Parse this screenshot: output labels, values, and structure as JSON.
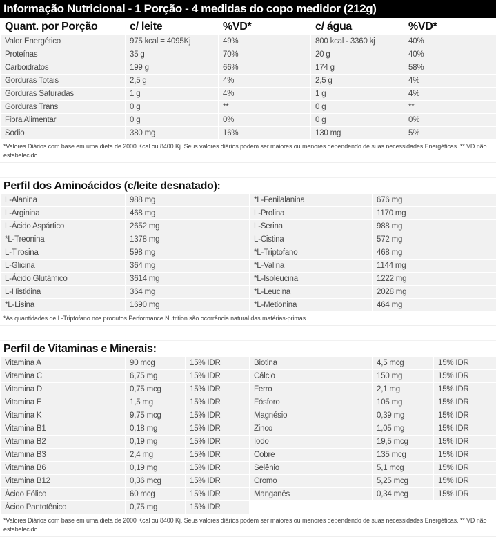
{
  "nutrition": {
    "title": "Informação Nutricional - 1 Porção - 4 medidas do copo medidor (212g)",
    "headers": [
      "Quant. por Porção",
      "c/ leite",
      "%VD*",
      "c/ água",
      "%VD*"
    ],
    "rows": [
      [
        "Valor Energético",
        "975 kcal = 4095Kj",
        "49%",
        "800 kcal - 3360 kj",
        "40%"
      ],
      [
        "Proteínas",
        "35 g",
        "70%",
        "20 g",
        "40%"
      ],
      [
        "Carboidratos",
        "199 g",
        "66%",
        "174 g",
        "58%"
      ],
      [
        "Gorduras Totais",
        "2,5 g",
        "4%",
        "2,5 g",
        "4%"
      ],
      [
        "Gorduras Saturadas",
        "1 g",
        "4%",
        "1 g",
        "4%"
      ],
      [
        "Gorduras Trans",
        "0 g",
        "**",
        "0 g",
        "**"
      ],
      [
        "Fibra Alimentar",
        "0 g",
        "0%",
        "0 g",
        "0%"
      ],
      [
        "Sodio",
        "380 mg",
        "16%",
        "130 mg",
        "5%"
      ]
    ],
    "footnote": "*Valores Diários com base em uma dieta de 2000 Kcal ou 8400 Kj. Seus valores diários podem ser maiores ou menores dependendo de suas necessidades Energéticas. ** VD não estabelecido."
  },
  "aminoacids": {
    "title": "Perfil dos Aminoácidos (c/leite desnatado):",
    "rows": [
      [
        "L-Alanina",
        "988 mg",
        "*L-Fenilalanina",
        "676 mg"
      ],
      [
        "L-Arginina",
        "468 mg",
        "L-Prolina",
        "1170 mg"
      ],
      [
        "L-Ácido Aspártico",
        "2652 mg",
        "L-Serina",
        "988 mg"
      ],
      [
        "*L-Treonina",
        "1378 mg",
        "L-Cistina",
        "572 mg"
      ],
      [
        "L-Tirosina",
        "598 mg",
        "*L-Triptofano",
        "468 mg"
      ],
      [
        "L-Glicina",
        "364 mg",
        "*L-Valina",
        "1144 mg"
      ],
      [
        "L-Ácido Glutâmico",
        "3614 mg",
        "*L-Isoleucina",
        "1222 mg"
      ],
      [
        "L-Histidina",
        "364 mg",
        "*L-Leucina",
        "2028 mg"
      ],
      [
        "*L-Lisina",
        "1690 mg",
        "*L-Metionina",
        "464 mg"
      ]
    ],
    "footnote": "*As quantidades de L-Triptofano nos produtos Performance Nutrition são ocorrência natural das matérias-primas."
  },
  "vitamins": {
    "title": "Perfil de Vitaminas e Minerais:",
    "rows": [
      [
        "Vitamina A",
        "90 mcg",
        "15% IDR",
        "Biotina",
        "4,5 mcg",
        "15% IDR"
      ],
      [
        "Vitamina C",
        "6,75 mg",
        "15% IDR",
        "Cálcio",
        "150 mg",
        "15% IDR"
      ],
      [
        "Vitamina D",
        "0,75 mcg",
        "15% IDR",
        "Ferro",
        "2,1 mg",
        "15% IDR"
      ],
      [
        "Vitamina E",
        "1,5 mg",
        "15% IDR",
        "Fósforo",
        "105 mg",
        "15% IDR"
      ],
      [
        "Vitamina K",
        "9,75 mcg",
        "15% IDR",
        "Magnésio",
        "0,39 mg",
        "15% IDR"
      ],
      [
        "Vitamina B1",
        "0,18 mg",
        "15% IDR",
        "Zinco",
        "1,05 mg",
        "15% IDR"
      ],
      [
        "Vitamina B2",
        "0,19 mg",
        "15% IDR",
        "Iodo",
        "19,5 mcg",
        "15% IDR"
      ],
      [
        "Vitamina B3",
        "2,4 mg",
        "15% IDR",
        "Cobre",
        "135 mcg",
        "15% IDR"
      ],
      [
        "Vitamina B6",
        "0,19 mg",
        "15% IDR",
        "Selênio",
        "5,1 mcg",
        "15% IDR"
      ],
      [
        "Vitamina B12",
        "0,36 mcg",
        "15% IDR",
        "Cromo",
        "5,25 mcg",
        "15% IDR"
      ],
      [
        "Ácido Fólico",
        "60 mcg",
        "15% IDR",
        "Manganês",
        "0,34 mcg",
        "15% IDR"
      ],
      [
        "Ácido Pantotênico",
        "0,75 mg",
        "15% IDR",
        "",
        "",
        ""
      ]
    ],
    "footnote": "*Valores Diários com base em uma dieta de 2000 Kcal ou 8400 Kj. Seus valores diários podem ser maiores ou menores dependendo de suas necessidades Energéticas. ** VD não estabelecido."
  }
}
